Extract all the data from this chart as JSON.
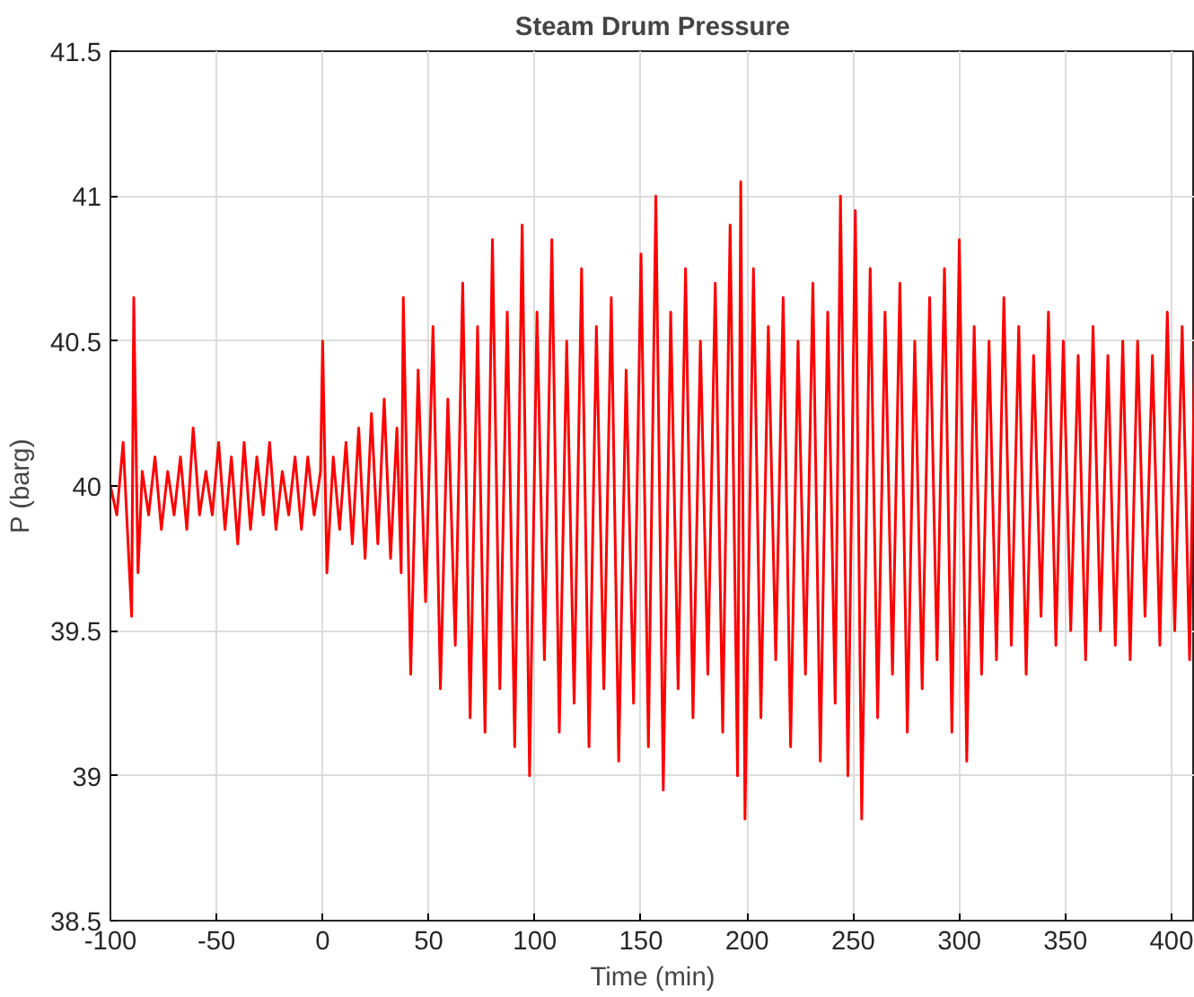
{
  "chart_data": {
    "type": "line",
    "title": "Steam Drum Pressure",
    "xlabel": "Time (min)",
    "ylabel": "P (barg)",
    "xlim": [
      -100,
      411
    ],
    "ylim": [
      38.5,
      41.5
    ],
    "xticks": [
      -100,
      -50,
      0,
      50,
      100,
      150,
      200,
      250,
      300,
      350,
      400
    ],
    "yticks": [
      38.5,
      39,
      39.5,
      40,
      40.5,
      41,
      41.5
    ],
    "grid": true,
    "marker": "none",
    "line_style": "solid",
    "series": [
      {
        "color": "#ff0000",
        "x": [
          -100,
          -97,
          -94,
          -92,
          -90,
          -89,
          -87,
          -85,
          -82,
          -79,
          -76,
          -73,
          -70,
          -67,
          -64,
          -61,
          -58,
          -55,
          -52,
          -49,
          -46,
          -43,
          -40,
          -37,
          -34,
          -31,
          -28,
          -25,
          -22,
          -19,
          -16,
          -13,
          -10,
          -7,
          -4,
          -1,
          0,
          2,
          5,
          8,
          11,
          14,
          17,
          20,
          23,
          26,
          29,
          32,
          35,
          37,
          38,
          41.5,
          45,
          48.5,
          52,
          55.5,
          59,
          62.5,
          66,
          69.5,
          73,
          76.5,
          80,
          83.5,
          87,
          90.5,
          94,
          97.5,
          101,
          104.5,
          108,
          111.5,
          115,
          118.5,
          122,
          125.5,
          129,
          132.5,
          136,
          139.5,
          143,
          146.5,
          150,
          153.5,
          157,
          160.5,
          164,
          167.5,
          171,
          174.5,
          178,
          181.5,
          185,
          188.5,
          192,
          195.5,
          197,
          199,
          203,
          206.5,
          210,
          213.5,
          217,
          220.5,
          224,
          227.5,
          231,
          234.5,
          238,
          241.5,
          244,
          247.5,
          251,
          254,
          258,
          261.5,
          265,
          268.5,
          272,
          275.5,
          279,
          282.5,
          286,
          289.5,
          293,
          296.5,
          300,
          303.5,
          307,
          310.5,
          314,
          317.5,
          321,
          324.5,
          328,
          331.5,
          335,
          338.5,
          342,
          345.5,
          349,
          352.5,
          356,
          359.5,
          363,
          366.5,
          370,
          373.5,
          377,
          380.5,
          384,
          387.5,
          391,
          394.5,
          398,
          401.5,
          405,
          408.5,
          411
        ],
        "values": [
          40.0,
          39.9,
          40.15,
          39.85,
          39.55,
          40.65,
          39.7,
          40.05,
          39.9,
          40.1,
          39.85,
          40.05,
          39.9,
          40.1,
          39.85,
          40.2,
          39.9,
          40.05,
          39.9,
          40.15,
          39.85,
          40.1,
          39.8,
          40.15,
          39.85,
          40.1,
          39.9,
          40.15,
          39.85,
          40.05,
          39.9,
          40.1,
          39.85,
          40.1,
          39.9,
          40.05,
          40.5,
          39.7,
          40.1,
          39.85,
          40.15,
          39.8,
          40.2,
          39.75,
          40.25,
          39.8,
          40.3,
          39.75,
          40.2,
          39.7,
          40.65,
          39.35,
          40.4,
          39.6,
          40.55,
          39.3,
          40.3,
          39.45,
          40.7,
          39.2,
          40.55,
          39.15,
          40.85,
          39.3,
          40.6,
          39.1,
          40.9,
          39.0,
          40.6,
          39.4,
          40.85,
          39.15,
          40.5,
          39.25,
          40.75,
          39.1,
          40.55,
          39.3,
          40.65,
          39.05,
          40.4,
          39.25,
          40.8,
          39.1,
          41.0,
          38.95,
          40.6,
          39.3,
          40.75,
          39.2,
          40.5,
          39.35,
          40.7,
          39.15,
          40.9,
          39.0,
          41.05,
          38.85,
          40.75,
          39.2,
          40.55,
          39.4,
          40.65,
          39.1,
          40.5,
          39.35,
          40.7,
          39.05,
          40.6,
          39.25,
          41.0,
          39.0,
          40.95,
          38.85,
          40.75,
          39.2,
          40.6,
          39.35,
          40.7,
          39.15,
          40.5,
          39.3,
          40.65,
          39.4,
          40.75,
          39.15,
          40.85,
          39.05,
          40.55,
          39.35,
          40.5,
          39.4,
          40.65,
          39.45,
          40.55,
          39.35,
          40.45,
          39.55,
          40.6,
          39.45,
          40.5,
          39.5,
          40.45,
          39.4,
          40.55,
          39.5,
          40.45,
          39.45,
          40.5,
          39.4,
          40.5,
          39.55,
          40.45,
          39.45,
          40.6,
          39.5,
          40.55,
          39.4,
          40.5
        ]
      }
    ]
  }
}
